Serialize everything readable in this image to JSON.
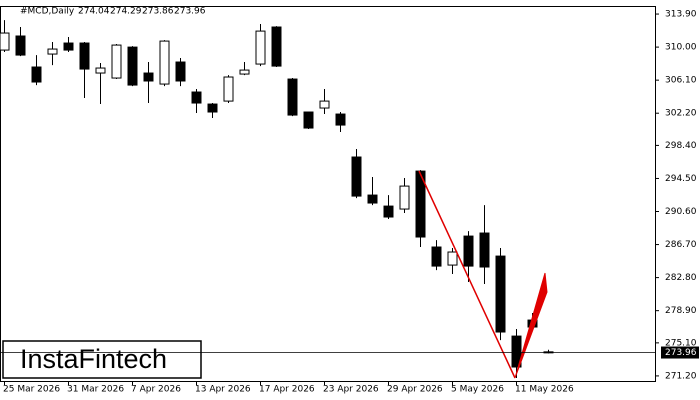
{
  "chart_data": {
    "type": "candlestick",
    "symbol": "#MCD,Daily",
    "watermark": "InstaFintech",
    "categories": [
      "25 Mar 2026",
      null,
      null,
      null,
      "31 Mar 2026",
      null,
      null,
      null,
      "7 Apr 2026",
      null,
      null,
      null,
      "13 Apr 2026",
      null,
      null,
      null,
      "17 Apr 2026",
      null,
      null,
      null,
      "23 Apr 2026",
      null,
      null,
      null,
      "29 Apr 2026",
      null,
      null,
      null,
      "5 May 2026",
      null,
      null,
      null,
      "11 May 2026",
      null,
      null
    ],
    "open": [
      309.65,
      311.31,
      307.65,
      309.18,
      310.48,
      310.48,
      306.94,
      306.35,
      310.0,
      306.94,
      305.64,
      308.24,
      304.7,
      303.28,
      303.63,
      306.82,
      308.0,
      312.37,
      306.23,
      302.34,
      302.81,
      302.1,
      297.03,
      292.54,
      291.24,
      290.89,
      295.37,
      286.41,
      284.28,
      287.7,
      288.06,
      285.34,
      275.9,
      277.79,
      274.04
    ],
    "high": [
      313.19,
      312.37,
      309.06,
      310.6,
      311.19,
      310.6,
      308.12,
      310.36,
      310.12,
      308.24,
      310.83,
      308.71,
      305.05,
      303.4,
      306.7,
      308.24,
      312.72,
      312.48,
      306.35,
      302.34,
      305.05,
      302.34,
      297.97,
      294.67,
      292.54,
      294.55,
      295.49,
      287.23,
      286.29,
      288.29,
      291.36,
      286.29,
      276.73,
      278.62,
      274.29
    ],
    "low": [
      309.42,
      308.94,
      305.52,
      307.88,
      309.42,
      303.99,
      303.28,
      306.23,
      305.4,
      303.4,
      305.4,
      305.4,
      302.22,
      301.63,
      303.4,
      306.7,
      307.76,
      307.65,
      301.86,
      300.33,
      302.1,
      299.98,
      292.18,
      291.36,
      289.71,
      290.42,
      286.41,
      283.69,
      283.22,
      282.28,
      282.04,
      275.43,
      270.95,
      276.61,
      273.86
    ],
    "close": [
      311.66,
      309.06,
      305.88,
      309.77,
      309.65,
      307.41,
      307.53,
      310.24,
      305.52,
      306.0,
      310.71,
      306.0,
      303.4,
      302.34,
      306.47,
      307.29,
      311.89,
      307.76,
      301.98,
      300.45,
      303.63,
      300.8,
      292.42,
      291.6,
      289.95,
      293.6,
      287.59,
      284.16,
      285.82,
      284.16,
      284.05,
      276.38,
      272.25,
      276.97,
      273.96
    ],
    "up_color": "#ffffff",
    "down_color": "#000000",
    "edge_color": "#000000",
    "ylim": [
      270.6,
      314.85
    ],
    "yticks": [
      {
        "value": 313.9,
        "label": "313.90"
      },
      {
        "value": 310,
        "label": "310.00"
      },
      {
        "value": 306.1,
        "label": "306.10"
      },
      {
        "value": 302.2,
        "label": "302.20"
      },
      {
        "value": 298.4,
        "label": "298.40"
      },
      {
        "value": 294.5,
        "label": "294.50"
      },
      {
        "value": 290.6,
        "label": "290.60"
      },
      {
        "value": 286.7,
        "label": "286.70"
      },
      {
        "value": 282.8,
        "label": "282.80"
      },
      {
        "value": 278.9,
        "label": "278.90"
      },
      {
        "value": 275.1,
        "label": "275.10"
      },
      {
        "value": 271.2,
        "label": "271.20"
      }
    ]
  }
}
